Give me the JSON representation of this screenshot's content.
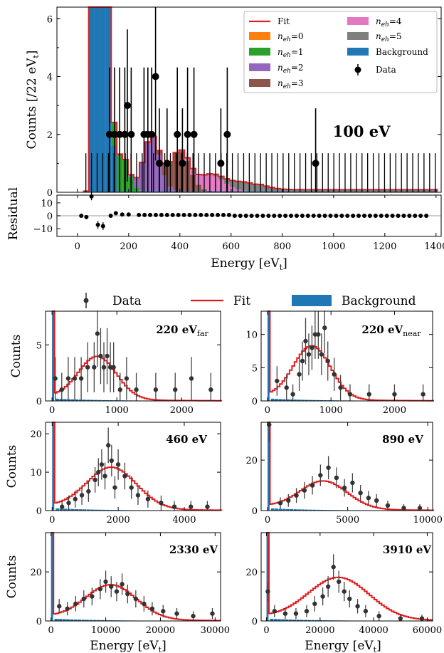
{
  "chart_data": [
    {
      "type": "histogram",
      "title": "100 eV",
      "ylabel": "Counts [/22 eV_t]",
      "xlabel": "Energy [eV_t]",
      "xlim": [
        -80,
        1420
      ],
      "ylim": [
        0,
        6.4
      ],
      "xticks": [
        0,
        200,
        400,
        600,
        800,
        1000,
        1200,
        1400
      ],
      "yticks": [
        0,
        2,
        4,
        6
      ],
      "legend": [
        "Fit",
        "n_eh=0",
        "n_eh=1",
        "n_eh=2",
        "n_eh=3",
        "n_eh=4",
        "n_eh=5",
        "Background",
        "Data"
      ],
      "colors": {
        "fit": "#d62728",
        "neh0": "#ff7f0e",
        "neh1": "#2ca02c",
        "neh2": "#9467bd",
        "neh3": "#8c564b",
        "neh4": "#e377c2",
        "neh5": "#7f7f7f",
        "background": "#1f77b4",
        "data": "#000000"
      },
      "data_points": [
        {
          "x": 125,
          "y": 2
        },
        {
          "x": 145,
          "y": 2
        },
        {
          "x": 165,
          "y": 2
        },
        {
          "x": 185,
          "y": 2
        },
        {
          "x": 195,
          "y": 3
        },
        {
          "x": 210,
          "y": 2
        },
        {
          "x": 260,
          "y": 2
        },
        {
          "x": 275,
          "y": 2
        },
        {
          "x": 290,
          "y": 2
        },
        {
          "x": 305,
          "y": 4
        },
        {
          "x": 320,
          "y": 1
        },
        {
          "x": 350,
          "y": 1
        },
        {
          "x": 390,
          "y": 2
        },
        {
          "x": 410,
          "y": 1
        },
        {
          "x": 430,
          "y": 2
        },
        {
          "x": 455,
          "y": 2
        },
        {
          "x": 560,
          "y": 1
        },
        {
          "x": 585,
          "y": 2
        },
        {
          "x": 930,
          "y": 1
        }
      ],
      "residual": {
        "ylabel": "Residual",
        "ylim": [
          -16,
          16
        ],
        "yticks": [
          -10,
          0,
          10
        ],
        "points": [
          {
            "x": 15,
            "y": 0
          },
          {
            "x": 35,
            "y": -1
          },
          {
            "x": 55,
            "y": 15
          },
          {
            "x": 80,
            "y": -7
          },
          {
            "x": 100,
            "y": -8
          },
          {
            "x": 130,
            "y": 0
          },
          {
            "x": 150,
            "y": 2
          },
          {
            "x": 175,
            "y": 1
          },
          {
            "x": 200,
            "y": 1
          }
        ]
      }
    },
    {
      "type": "histogram",
      "title": "220 eV_far",
      "ylabel": "Counts",
      "xlim": [
        -100,
        2600
      ],
      "ylim": [
        0,
        8
      ],
      "xticks": [
        0,
        1000,
        2000
      ],
      "yticks": [
        0,
        5
      ],
      "fit_peak": {
        "x": 700,
        "y": 3.8
      },
      "data_points": [
        {
          "x": 50,
          "y": 2
        },
        {
          "x": 150,
          "y": 1
        },
        {
          "x": 250,
          "y": 2
        },
        {
          "x": 350,
          "y": 2
        },
        {
          "x": 450,
          "y": 2
        },
        {
          "x": 550,
          "y": 3
        },
        {
          "x": 650,
          "y": 3
        },
        {
          "x": 700,
          "y": 6
        },
        {
          "x": 750,
          "y": 4
        },
        {
          "x": 800,
          "y": 3
        },
        {
          "x": 850,
          "y": 4
        },
        {
          "x": 900,
          "y": 3
        },
        {
          "x": 950,
          "y": 3
        },
        {
          "x": 1050,
          "y": 1
        },
        {
          "x": 1150,
          "y": 2
        },
        {
          "x": 1300,
          "y": 1
        },
        {
          "x": 1600,
          "y": 1
        },
        {
          "x": 1900,
          "y": 1
        },
        {
          "x": 2150,
          "y": 2
        },
        {
          "x": 2450,
          "y": 1
        }
      ]
    },
    {
      "type": "histogram",
      "title": "220 eV_near",
      "ylabel": "",
      "xlim": [
        -100,
        2600
      ],
      "ylim": [
        0,
        13.5
      ],
      "xticks": [
        0,
        1000,
        2000
      ],
      "yticks": [
        0,
        5,
        10
      ],
      "fit_peak": {
        "x": 700,
        "y": 8
      },
      "data_points": [
        {
          "x": 150,
          "y": 3
        },
        {
          "x": 300,
          "y": 2
        },
        {
          "x": 400,
          "y": 1
        },
        {
          "x": 500,
          "y": 4
        },
        {
          "x": 550,
          "y": 6
        },
        {
          "x": 600,
          "y": 9
        },
        {
          "x": 650,
          "y": 7
        },
        {
          "x": 700,
          "y": 8
        },
        {
          "x": 750,
          "y": 10
        },
        {
          "x": 800,
          "y": 10
        },
        {
          "x": 850,
          "y": 7
        },
        {
          "x": 900,
          "y": 11
        },
        {
          "x": 950,
          "y": 6
        },
        {
          "x": 1050,
          "y": 4
        },
        {
          "x": 1150,
          "y": 2
        },
        {
          "x": 1300,
          "y": 1
        },
        {
          "x": 1600,
          "y": 1
        },
        {
          "x": 2000,
          "y": 1
        },
        {
          "x": 2450,
          "y": 1
        }
      ]
    },
    {
      "type": "histogram",
      "title": "460 eV",
      "ylabel": "Counts",
      "xlim": [
        -200,
        5100
      ],
      "ylim": [
        0,
        23
      ],
      "xticks": [
        0,
        2000,
        4000
      ],
      "yticks": [
        0,
        10,
        20
      ],
      "fit_peak": {
        "x": 1800,
        "y": 10.8
      },
      "data_points": [
        {
          "x": 300,
          "y": 1
        },
        {
          "x": 500,
          "y": 2
        },
        {
          "x": 700,
          "y": 3
        },
        {
          "x": 900,
          "y": 4
        },
        {
          "x": 1100,
          "y": 5
        },
        {
          "x": 1300,
          "y": 8
        },
        {
          "x": 1400,
          "y": 10
        },
        {
          "x": 1500,
          "y": 12
        },
        {
          "x": 1600,
          "y": 9
        },
        {
          "x": 1700,
          "y": 17
        },
        {
          "x": 1800,
          "y": 13
        },
        {
          "x": 1900,
          "y": 6
        },
        {
          "x": 2000,
          "y": 12
        },
        {
          "x": 2200,
          "y": 9
        },
        {
          "x": 2400,
          "y": 6
        },
        {
          "x": 2600,
          "y": 4
        },
        {
          "x": 2900,
          "y": 3
        },
        {
          "x": 3300,
          "y": 2
        },
        {
          "x": 3700,
          "y": 1
        },
        {
          "x": 4200,
          "y": 1
        },
        {
          "x": 4700,
          "y": 1
        }
      ]
    },
    {
      "type": "histogram",
      "title": "890 eV",
      "ylabel": "",
      "xlim": [
        -400,
        10300
      ],
      "ylim": [
        0,
        35
      ],
      "xticks": [
        0,
        5000,
        10000
      ],
      "yticks": [
        0,
        20
      ],
      "fit_peak": {
        "x": 3500,
        "y": 11
      },
      "data_points": [
        {
          "x": 100,
          "y": 34
        },
        {
          "x": 800,
          "y": 3
        },
        {
          "x": 1300,
          "y": 4
        },
        {
          "x": 1800,
          "y": 6
        },
        {
          "x": 2300,
          "y": 8
        },
        {
          "x": 2800,
          "y": 10
        },
        {
          "x": 3300,
          "y": 14
        },
        {
          "x": 3800,
          "y": 17
        },
        {
          "x": 4300,
          "y": 13
        },
        {
          "x": 4800,
          "y": 9
        },
        {
          "x": 5300,
          "y": 11
        },
        {
          "x": 5800,
          "y": 7
        },
        {
          "x": 6300,
          "y": 5
        },
        {
          "x": 6800,
          "y": 4
        },
        {
          "x": 7500,
          "y": 2
        },
        {
          "x": 8500,
          "y": 1
        },
        {
          "x": 9500,
          "y": 1
        }
      ]
    },
    {
      "type": "histogram",
      "title": "2330 eV",
      "ylabel": "Counts",
      "xlabel": "Energy [eV_t]",
      "xlim": [
        -1000,
        31000
      ],
      "ylim": [
        0,
        36
      ],
      "xticks": [
        0,
        10000,
        20000,
        30000
      ],
      "yticks": [
        0,
        20
      ],
      "fit_peak": {
        "x": 11000,
        "y": 14
      },
      "data_points": [
        {
          "x": 1500,
          "y": 6
        },
        {
          "x": 3000,
          "y": 5
        },
        {
          "x": 4500,
          "y": 7
        },
        {
          "x": 6000,
          "y": 9
        },
        {
          "x": 7500,
          "y": 10
        },
        {
          "x": 9000,
          "y": 13
        },
        {
          "x": 10000,
          "y": 16
        },
        {
          "x": 11000,
          "y": 14
        },
        {
          "x": 12000,
          "y": 12
        },
        {
          "x": 13000,
          "y": 15
        },
        {
          "x": 14000,
          "y": 11
        },
        {
          "x": 15500,
          "y": 9
        },
        {
          "x": 17000,
          "y": 7
        },
        {
          "x": 18500,
          "y": 5
        },
        {
          "x": 20500,
          "y": 4
        },
        {
          "x": 23000,
          "y": 3
        },
        {
          "x": 26000,
          "y": 2
        },
        {
          "x": 29500,
          "y": 3
        }
      ]
    },
    {
      "type": "histogram",
      "title": "3910 eV",
      "ylabel": "",
      "xlabel": "Energy [eV_t]",
      "xlim": [
        -2000,
        62000
      ],
      "ylim": [
        0,
        36
      ],
      "xticks": [
        0,
        20000,
        40000,
        60000
      ],
      "yticks": [
        0,
        20
      ],
      "fit_peak": {
        "x": 27000,
        "y": 17
      },
      "data_points": [
        {
          "x": 500,
          "y": 12
        },
        {
          "x": 3000,
          "y": 4
        },
        {
          "x": 7000,
          "y": 3
        },
        {
          "x": 11000,
          "y": 3
        },
        {
          "x": 15000,
          "y": 4
        },
        {
          "x": 18000,
          "y": 7
        },
        {
          "x": 21000,
          "y": 10
        },
        {
          "x": 23000,
          "y": 14
        },
        {
          "x": 25000,
          "y": 22
        },
        {
          "x": 27000,
          "y": 16
        },
        {
          "x": 29000,
          "y": 12
        },
        {
          "x": 31000,
          "y": 9
        },
        {
          "x": 34000,
          "y": 6
        },
        {
          "x": 37000,
          "y": 4
        },
        {
          "x": 42000,
          "y": 2
        },
        {
          "x": 50000,
          "y": 1
        },
        {
          "x": 58000,
          "y": 1
        }
      ]
    }
  ],
  "labels": {
    "top_title": "100 eV",
    "top_ylabel": "Counts [/22 eV",
    "top_ylabel_sub": "t",
    "top_ylabel_end": "]",
    "residual_ylabel": "Residual",
    "xlabel": "Energy [eV",
    "xlabel_sub": "t",
    "xlabel_end": "]",
    "counts": "Counts",
    "legend_fit": "Fit",
    "legend_neh0": "=0",
    "legend_neh1": "=1",
    "legend_neh2": "=2",
    "legend_neh3": "=3",
    "legend_neh4": "=4",
    "legend_neh5": "=5",
    "legend_n": "n",
    "legend_eh": "eh",
    "legend_background": "Background",
    "legend_data": "Data",
    "bottom_legend_data": "Data",
    "bottom_legend_fit": "Fit",
    "bottom_legend_background": "Background",
    "p1_title": "220 eV",
    "p1_sub": "far",
    "p2_title": "220 eV",
    "p2_sub": "near",
    "p3_title": "460 eV",
    "p4_title": "890 eV",
    "p5_title": "2330 eV",
    "p6_title": "3910 eV"
  }
}
